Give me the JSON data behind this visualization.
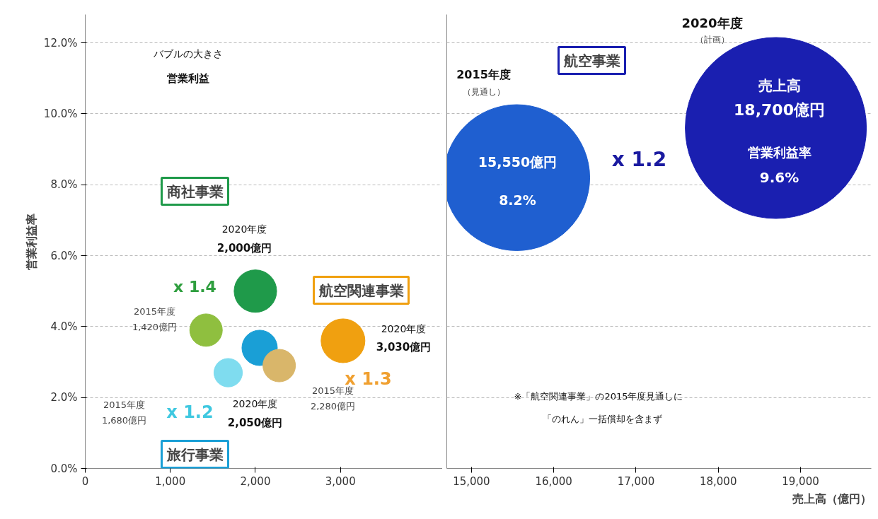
{
  "chart_data": [
    {
      "type": "bubble",
      "ylabel": "営業利益率",
      "xlim": [
        0,
        4200
      ],
      "ylim": [
        0,
        12.8
      ],
      "xticks": [
        0,
        {
          "value": 1000,
          "label": "1,000"
        },
        {
          "value": 2000,
          "label": "2,000"
        },
        {
          "value": 3000,
          "label": "3,000"
        }
      ],
      "yticks": [
        {
          "value": 0,
          "label": "0.0%"
        },
        {
          "value": 2,
          "label": "2.0%"
        },
        {
          "value": 4,
          "label": "4.0%"
        },
        {
          "value": 6,
          "label": "6.0%"
        },
        {
          "value": 8,
          "label": "8.0%"
        },
        {
          "value": 10,
          "label": "10.0%"
        },
        {
          "value": 12,
          "label": "12.0%"
        }
      ],
      "grid": "y",
      "series": [
        {
          "name": "商社事業",
          "x": [
            1420,
            2000
          ],
          "values": [
            3.9,
            5.0
          ],
          "sizes": [
            0.55,
            0.94
          ],
          "colors": [
            "#8fbf3f",
            "#1f9a4a"
          ]
        },
        {
          "name": "旅行事業",
          "x": [
            1680,
            2050
          ],
          "values": [
            2.7,
            3.4
          ],
          "sizes": [
            0.42,
            0.65
          ],
          "colors": [
            "#7fdcef",
            "#1a9fd6"
          ]
        },
        {
          "name": "航空関連事業",
          "x": [
            2280,
            3030
          ],
          "values": [
            2.9,
            3.6
          ],
          "sizes": [
            0.55,
            1
          ],
          "colors": [
            "#d9b66a",
            "#f0a010"
          ]
        }
      ],
      "annotations": [
        "x 1.4",
        "x 1.2",
        "x 1.3",
        "2015年度",
        "1,420億円",
        "2020年度",
        "2,000億円",
        "2015年度",
        "1,680億円",
        "2020年度",
        "2,050億円",
        "2015年度",
        "2,280億円",
        "2020年度",
        "3,030億円",
        "バブルの大きさ",
        "営業利益"
      ]
    },
    {
      "type": "bubble",
      "xlabel": "売上高（億円）",
      "xlim": [
        14700,
        19860
      ],
      "ylim": [
        0,
        12.8
      ],
      "tick_labels": "x",
      "xticks": [
        {
          "value": 15000,
          "label": "15,000"
        },
        {
          "value": 16000,
          "label": "16,000"
        },
        {
          "value": 17000,
          "label": "17,000"
        },
        {
          "value": 18000,
          "label": "18,000"
        },
        {
          "value": 19000,
          "label": "19,000"
        }
      ],
      "yticks": [
        0,
        2,
        4,
        6,
        8,
        10,
        12
      ],
      "grid": "y",
      "series": [
        {
          "name": "航空事業",
          "x": [
            15550,
            18700
          ],
          "values": [
            8.2,
            9.6
          ],
          "sizes": [
            0.65,
            1
          ],
          "colors": [
            "#1f5fd0",
            "#1a1fb0"
          ]
        }
      ],
      "annotations": [
        "x 1.2",
        "2015年度",
        "（見通し）",
        "15,550億円",
        "8.2%",
        "2020年度",
        "（計画）",
        "売上高",
        "18,700億円",
        "営業利益率",
        "9.6%",
        "※「航空関連事業」の2015年度見通しに",
        "「のれん」一括償却を含まず"
      ]
    }
  ]
}
